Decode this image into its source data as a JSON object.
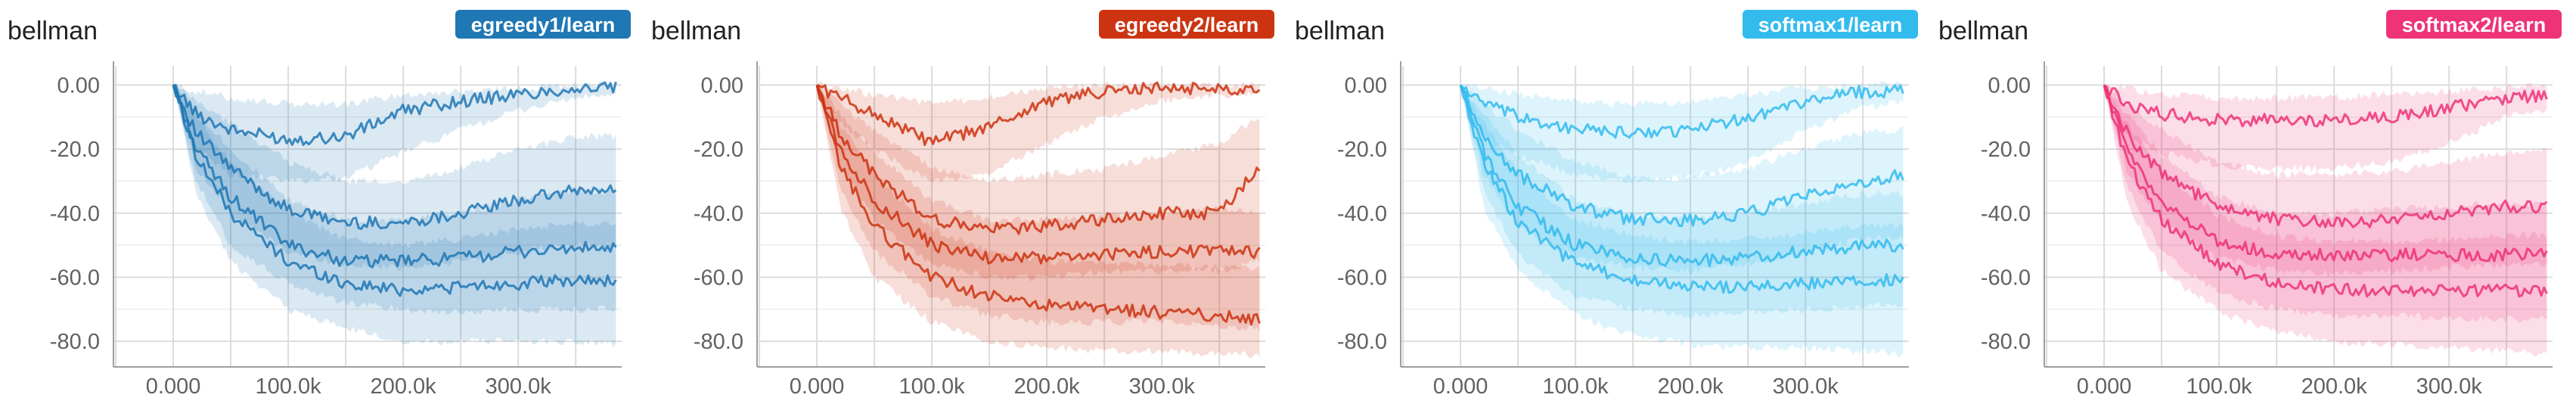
{
  "chart_data": [
    {
      "type": "area",
      "title": "bellman",
      "badge": "egreedy1/learn",
      "color": "#1f77b4",
      "ylim": [
        -88,
        6
      ],
      "xlim": [
        -52000,
        390000
      ],
      "x_ticks": [
        0,
        100000,
        200000,
        300000
      ],
      "x_tick_labels": [
        "0.000",
        "100.0k",
        "200.0k",
        "300.0k"
      ],
      "y_ticks": [
        0,
        -20,
        -40,
        -60,
        -80
      ],
      "y_tick_labels": [
        "0.00",
        "-20.0",
        "-40.0",
        "-60.0",
        "-80.0"
      ],
      "grid": true,
      "series": [
        {
          "x": [
            0,
            20000,
            50000,
            100000,
            150000,
            200000,
            250000,
            300000,
            350000,
            385000
          ],
          "y": [
            0,
            -9,
            -14,
            -17,
            -16,
            -8,
            -5,
            -3,
            -1,
            -1
          ],
          "lower": [
            0,
            -20,
            -28,
            -30,
            -29,
            -21,
            -14,
            -8,
            -4,
            -3
          ],
          "upper": [
            0,
            -2,
            -4,
            -6,
            -6,
            -3,
            -2,
            -1,
            0,
            0
          ]
        },
        {
          "x": [
            0,
            20000,
            50000,
            100000,
            150000,
            200000,
            250000,
            300000,
            350000,
            385000
          ],
          "y": [
            0,
            -15,
            -26,
            -39,
            -43,
            -43,
            -40,
            -36,
            -33,
            -33
          ],
          "lower": [
            0,
            -26,
            -40,
            -52,
            -56,
            -57,
            -55,
            -52,
            -50,
            -50
          ],
          "upper": [
            0,
            -5,
            -12,
            -24,
            -30,
            -30,
            -26,
            -20,
            -16,
            -16
          ]
        },
        {
          "x": [
            0,
            20000,
            50000,
            100000,
            150000,
            200000,
            250000,
            300000,
            350000,
            385000
          ],
          "y": [
            0,
            -20,
            -35,
            -50,
            -55,
            -55,
            -54,
            -52,
            -51,
            -51
          ],
          "lower": [
            0,
            -30,
            -50,
            -62,
            -68,
            -70,
            -71,
            -70,
            -70,
            -70
          ],
          "upper": [
            0,
            -8,
            -20,
            -36,
            -42,
            -42,
            -40,
            -36,
            -33,
            -33
          ]
        },
        {
          "x": [
            0,
            20000,
            50000,
            100000,
            150000,
            200000,
            250000,
            300000,
            350000,
            385000
          ],
          "y": [
            0,
            -22,
            -40,
            -55,
            -62,
            -64,
            -63,
            -62,
            -61,
            -61
          ],
          "lower": [
            0,
            -34,
            -55,
            -70,
            -76,
            -80,
            -80,
            -80,
            -80,
            -81
          ],
          "upper": [
            0,
            -10,
            -24,
            -40,
            -48,
            -50,
            -48,
            -45,
            -43,
            -43
          ]
        }
      ]
    },
    {
      "type": "area",
      "title": "bellman",
      "badge": "egreedy2/learn",
      "color": "#cc3311",
      "ylim": [
        -88,
        6
      ],
      "xlim": [
        -52000,
        390000
      ],
      "x_ticks": [
        0,
        100000,
        200000,
        300000
      ],
      "x_tick_labels": [
        "0.000",
        "100.0k",
        "200.0k",
        "300.0k"
      ],
      "y_ticks": [
        0,
        -20,
        -40,
        -60,
        -80
      ],
      "y_tick_labels": [
        "0.00",
        "-20.0",
        "-40.0",
        "-60.0",
        "-80.0"
      ],
      "grid": true,
      "series": [
        {
          "x": [
            0,
            20000,
            50000,
            100000,
            150000,
            200000,
            250000,
            300000,
            350000,
            385000
          ],
          "y": [
            0,
            -4,
            -9,
            -18,
            -13,
            -5,
            -2,
            -1,
            -1,
            -1
          ],
          "lower": [
            0,
            -12,
            -20,
            -30,
            -28,
            -18,
            -10,
            -5,
            -3,
            -3
          ],
          "upper": [
            0,
            -1,
            -3,
            -6,
            -4,
            -1,
            0,
            0,
            0,
            0
          ]
        },
        {
          "x": [
            0,
            20000,
            50000,
            100000,
            150000,
            200000,
            250000,
            300000,
            350000,
            385000
          ],
          "y": [
            0,
            -15,
            -28,
            -42,
            -45,
            -44,
            -42,
            -40,
            -40,
            -25
          ],
          "lower": [
            0,
            -26,
            -42,
            -56,
            -60,
            -60,
            -58,
            -58,
            -58,
            -55
          ],
          "upper": [
            0,
            -6,
            -14,
            -26,
            -30,
            -28,
            -26,
            -22,
            -18,
            -10
          ]
        },
        {
          "x": [
            0,
            20000,
            50000,
            100000,
            150000,
            200000,
            250000,
            300000,
            350000,
            385000
          ],
          "y": [
            0,
            -20,
            -36,
            -50,
            -54,
            -54,
            -53,
            -52,
            -52,
            -52
          ],
          "lower": [
            0,
            -32,
            -52,
            -66,
            -72,
            -74,
            -74,
            -74,
            -75,
            -76
          ],
          "upper": [
            0,
            -9,
            -21,
            -36,
            -42,
            -42,
            -41,
            -40,
            -39,
            -39
          ]
        },
        {
          "x": [
            0,
            20000,
            50000,
            100000,
            150000,
            200000,
            250000,
            300000,
            350000,
            385000
          ],
          "y": [
            0,
            -25,
            -44,
            -60,
            -66,
            -69,
            -70,
            -71,
            -72,
            -73
          ],
          "lower": [
            0,
            -38,
            -60,
            -74,
            -80,
            -82,
            -83,
            -83,
            -84,
            -84
          ],
          "upper": [
            0,
            -12,
            -28,
            -45,
            -52,
            -55,
            -56,
            -56,
            -57,
            -57
          ]
        }
      ]
    },
    {
      "type": "area",
      "title": "bellman",
      "badge": "softmax1/learn",
      "color": "#33bbee",
      "ylim": [
        -88,
        6
      ],
      "xlim": [
        -52000,
        390000
      ],
      "x_ticks": [
        0,
        100000,
        200000,
        300000
      ],
      "x_tick_labels": [
        "0.000",
        "100.0k",
        "200.0k",
        "300.0k"
      ],
      "y_ticks": [
        0,
        -20,
        -40,
        -60,
        -80
      ],
      "y_tick_labels": [
        "0.00",
        "-20.0",
        "-40.0",
        "-60.0",
        "-80.0"
      ],
      "grid": true,
      "series": [
        {
          "x": [
            0,
            20000,
            50000,
            100000,
            150000,
            200000,
            250000,
            300000,
            350000,
            385000
          ],
          "y": [
            0,
            -6,
            -10,
            -14,
            -15,
            -14,
            -10,
            -5,
            -2,
            -2
          ],
          "lower": [
            0,
            -16,
            -22,
            -28,
            -30,
            -29,
            -24,
            -14,
            -7,
            -5
          ],
          "upper": [
            0,
            -1,
            -3,
            -5,
            -6,
            -5,
            -3,
            -1,
            0,
            0
          ]
        },
        {
          "x": [
            0,
            20000,
            50000,
            100000,
            150000,
            200000,
            250000,
            300000,
            350000,
            385000
          ],
          "y": [
            0,
            -16,
            -28,
            -38,
            -42,
            -42,
            -40,
            -35,
            -30,
            -28
          ],
          "lower": [
            0,
            -28,
            -44,
            -54,
            -57,
            -58,
            -56,
            -52,
            -48,
            -47
          ],
          "upper": [
            0,
            -6,
            -14,
            -24,
            -29,
            -29,
            -26,
            -20,
            -15,
            -14
          ]
        },
        {
          "x": [
            0,
            20000,
            50000,
            100000,
            150000,
            200000,
            250000,
            300000,
            350000,
            385000
          ],
          "y": [
            0,
            -21,
            -38,
            -50,
            -54,
            -55,
            -54,
            -52,
            -50,
            -50
          ],
          "lower": [
            0,
            -33,
            -53,
            -66,
            -70,
            -72,
            -71,
            -70,
            -69,
            -69
          ],
          "upper": [
            0,
            -9,
            -22,
            -36,
            -41,
            -42,
            -40,
            -37,
            -34,
            -34
          ]
        },
        {
          "x": [
            0,
            20000,
            50000,
            100000,
            150000,
            200000,
            250000,
            300000,
            350000,
            385000
          ],
          "y": [
            0,
            -24,
            -43,
            -56,
            -61,
            -63,
            -63,
            -62,
            -61,
            -61
          ],
          "lower": [
            0,
            -38,
            -58,
            -72,
            -78,
            -81,
            -82,
            -82,
            -83,
            -84
          ],
          "upper": [
            0,
            -12,
            -27,
            -42,
            -47,
            -49,
            -48,
            -46,
            -44,
            -44
          ]
        }
      ]
    },
    {
      "type": "area",
      "title": "bellman",
      "badge": "softmax2/learn",
      "color": "#ee3377",
      "ylim": [
        -88,
        6
      ],
      "xlim": [
        -52000,
        390000
      ],
      "x_ticks": [
        0,
        100000,
        200000,
        300000
      ],
      "x_tick_labels": [
        "0.000",
        "100.0k",
        "200.0k",
        "300.0k"
      ],
      "y_ticks": [
        0,
        -20,
        -40,
        -60,
        -80
      ],
      "y_tick_labels": [
        "0.00",
        "-20.0",
        "-40.0",
        "-60.0",
        "-80.0"
      ],
      "grid": true,
      "series": [
        {
          "x": [
            0,
            20000,
            50000,
            100000,
            150000,
            200000,
            250000,
            300000,
            350000,
            385000
          ],
          "y": [
            0,
            -6,
            -9,
            -11,
            -11,
            -11,
            -10,
            -7,
            -4,
            -3
          ],
          "lower": [
            0,
            -16,
            -21,
            -25,
            -26,
            -26,
            -24,
            -18,
            -10,
            -8
          ],
          "upper": [
            0,
            -1,
            -3,
            -4,
            -4,
            -4,
            -3,
            -2,
            -1,
            0
          ]
        },
        {
          "x": [
            0,
            20000,
            50000,
            100000,
            150000,
            200000,
            250000,
            300000,
            350000,
            385000
          ],
          "y": [
            0,
            -15,
            -28,
            -38,
            -42,
            -43,
            -42,
            -40,
            -38,
            -38
          ],
          "lower": [
            0,
            -27,
            -43,
            -54,
            -58,
            -59,
            -58,
            -57,
            -56,
            -56
          ],
          "upper": [
            0,
            -6,
            -14,
            -24,
            -28,
            -28,
            -27,
            -24,
            -21,
            -20
          ]
        },
        {
          "x": [
            0,
            20000,
            50000,
            100000,
            150000,
            200000,
            250000,
            300000,
            350000,
            385000
          ],
          "y": [
            0,
            -20,
            -37,
            -49,
            -53,
            -53,
            -53,
            -53,
            -53,
            -53
          ],
          "lower": [
            0,
            -32,
            -52,
            -65,
            -70,
            -72,
            -72,
            -73,
            -73,
            -73
          ],
          "upper": [
            0,
            -9,
            -22,
            -35,
            -40,
            -40,
            -39,
            -38,
            -37,
            -37
          ]
        },
        {
          "x": [
            0,
            20000,
            50000,
            100000,
            150000,
            200000,
            250000,
            300000,
            350000,
            385000
          ],
          "y": [
            0,
            -24,
            -42,
            -56,
            -62,
            -64,
            -64,
            -64,
            -64,
            -64
          ],
          "lower": [
            0,
            -37,
            -58,
            -71,
            -77,
            -80,
            -81,
            -82,
            -83,
            -84
          ],
          "upper": [
            0,
            -12,
            -27,
            -41,
            -47,
            -49,
            -49,
            -48,
            -47,
            -47
          ]
        }
      ]
    }
  ]
}
